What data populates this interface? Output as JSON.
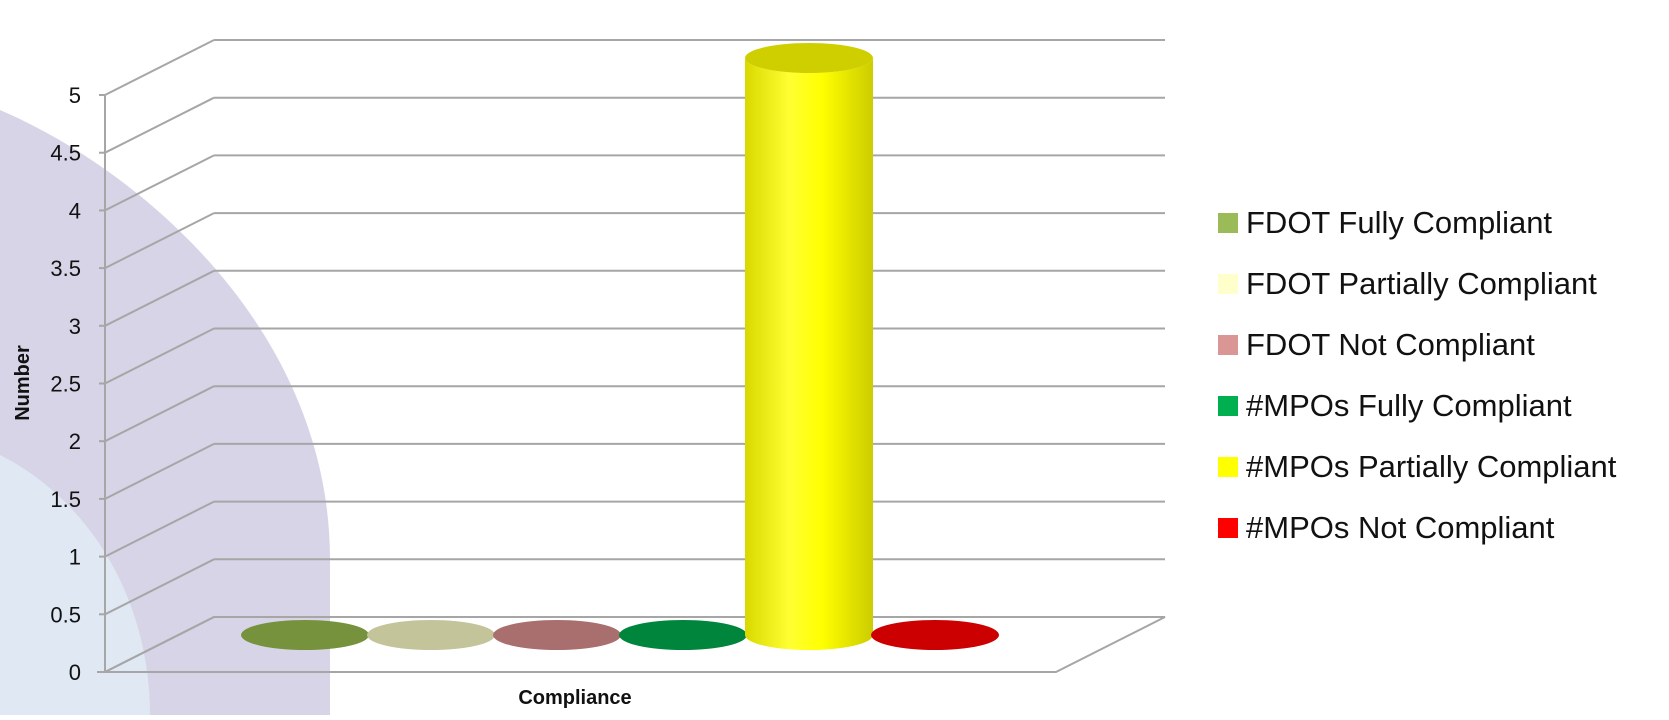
{
  "chart_data": {
    "type": "bar",
    "style": "3d-cylinder",
    "title": "",
    "xlabel": "Compliance",
    "ylabel": "Number",
    "ylim": [
      0,
      5
    ],
    "yticks": [
      "0",
      "0.5",
      "1",
      "1.5",
      "2",
      "2.5",
      "3",
      "3.5",
      "4",
      "4.5",
      "5"
    ],
    "grid": true,
    "legend_position": "right",
    "categories": [
      ""
    ],
    "series": [
      {
        "name": "FDOT Fully Compliant",
        "values": [
          0
        ],
        "color": "#9BBB59",
        "mark_color": "#76923C"
      },
      {
        "name": "FDOT Partially Compliant",
        "values": [
          0
        ],
        "color": "#FFFFCC",
        "mark_color": "#C4C49B"
      },
      {
        "name": "FDOT Not Compliant",
        "values": [
          0
        ],
        "color": "#D99694",
        "mark_color": "#A86F6E"
      },
      {
        "name": "#MPOs Fully Compliant",
        "values": [
          0
        ],
        "color": "#00B050",
        "mark_color": "#00853C"
      },
      {
        "name": "#MPOs Partially Compliant",
        "values": [
          5
        ],
        "color": "#FFFF00",
        "mark_color": "#FFFF00"
      },
      {
        "name": "#MPOs Not Compliant",
        "values": [
          0
        ],
        "color": "#FF0000",
        "mark_color": "#CC0000"
      }
    ]
  }
}
